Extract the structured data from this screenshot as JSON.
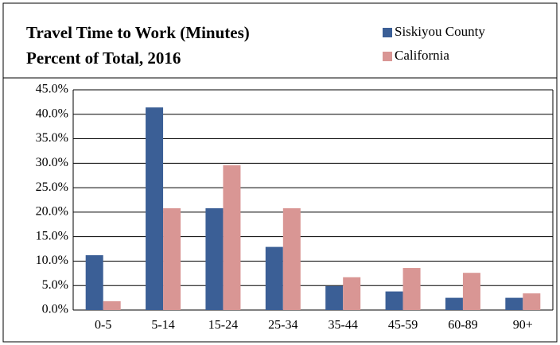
{
  "chart_data": {
    "type": "bar",
    "title": "Travel Time to Work (Minutes)",
    "subtitle": "Percent of Total, 2016",
    "categories": [
      "0-5",
      "5-14",
      "15-24",
      "25-34",
      "35-44",
      "45-59",
      "60-89",
      "90+"
    ],
    "series": [
      {
        "name": "Siskiyou County",
        "color": "#3b5f96",
        "values": [
          11.2,
          41.4,
          20.8,
          12.9,
          4.9,
          3.8,
          2.5,
          2.5
        ]
      },
      {
        "name": "California",
        "color": "#d99694",
        "values": [
          1.8,
          20.8,
          29.6,
          20.8,
          6.7,
          8.6,
          7.6,
          3.4
        ]
      }
    ],
    "ylim": [
      0,
      45
    ],
    "yticks": [
      {
        "value": 0,
        "label": "0.0%"
      },
      {
        "value": 5,
        "label": "5.0%"
      },
      {
        "value": 10,
        "label": "10.0%"
      },
      {
        "value": 15,
        "label": "15.0%"
      },
      {
        "value": 20,
        "label": "20.0%"
      },
      {
        "value": 25,
        "label": "25.0%"
      },
      {
        "value": 30,
        "label": "30.0%"
      },
      {
        "value": 35,
        "label": "35.0%"
      },
      {
        "value": 40,
        "label": "40.0%"
      },
      {
        "value": 45,
        "label": "45.0%"
      }
    ],
    "grid": true,
    "legend": "top-right"
  }
}
